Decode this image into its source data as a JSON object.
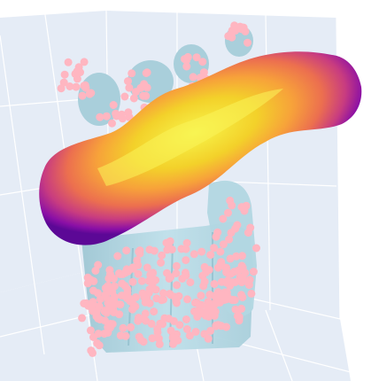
{
  "chart_data": {
    "type": "scatter",
    "title": "",
    "xlabel": "",
    "ylabel": "",
    "zlabel": "",
    "grid": true,
    "legend": "none",
    "colors": {
      "scene_background": "#e5ecf6",
      "grid": "#ffffff",
      "points": "#ffb6c1",
      "mesh": "#add8e6",
      "colorscale": [
        "#0d0887",
        "#7e03a8",
        "#cc4778",
        "#f89540",
        "#f0f921"
      ]
    },
    "series": [
      {
        "kind": "scatter3d-points"
      },
      {
        "kind": "mesh3d-hand"
      },
      {
        "kind": "mesh3d-tube-colorscale"
      }
    ]
  }
}
